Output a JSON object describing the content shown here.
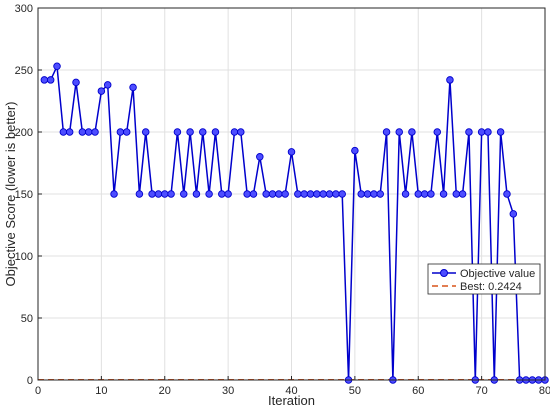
{
  "chart_data": {
    "type": "line",
    "title": "",
    "xlabel": "Iteration",
    "ylabel": "Objective Score (lower is better)",
    "xlim": [
      0,
      80
    ],
    "ylim": [
      0,
      300
    ],
    "xticks": [
      0,
      10,
      20,
      30,
      40,
      50,
      60,
      70,
      80
    ],
    "yticks": [
      0,
      50,
      100,
      150,
      200,
      250,
      300
    ],
    "grid": true,
    "legend_position": "right",
    "series": [
      {
        "name": "Objective value",
        "style": "line-with-circle-markers",
        "color": "#0000cc",
        "marker_fill": "#4d4dff",
        "x": [
          1,
          2,
          3,
          4,
          5,
          6,
          7,
          8,
          9,
          10,
          11,
          12,
          13,
          14,
          15,
          16,
          17,
          18,
          19,
          20,
          21,
          22,
          23,
          24,
          25,
          26,
          27,
          28,
          29,
          30,
          31,
          32,
          33,
          34,
          35,
          36,
          37,
          38,
          39,
          40,
          41,
          42,
          43,
          44,
          45,
          46,
          47,
          48,
          49,
          50,
          51,
          52,
          53,
          54,
          55,
          56,
          57,
          58,
          59,
          60,
          61,
          62,
          63,
          64,
          65,
          66,
          67,
          68,
          69,
          70,
          71,
          72,
          73,
          74,
          75,
          76,
          77,
          78,
          79,
          80
        ],
        "y": [
          242,
          242,
          253,
          200,
          200,
          240,
          200,
          200,
          200,
          233,
          238,
          150,
          200,
          200,
          236,
          150,
          200,
          150,
          150,
          150,
          150,
          200,
          150,
          200,
          150,
          200,
          150,
          200,
          150,
          150,
          200,
          200,
          150,
          150,
          180,
          150,
          150,
          150,
          150,
          184,
          150,
          150,
          150,
          150,
          150,
          150,
          150,
          150,
          0,
          185,
          150,
          150,
          150,
          150,
          200,
          0,
          200,
          150,
          200,
          150,
          150,
          150,
          200,
          150,
          242,
          150,
          150,
          200,
          0,
          200,
          200,
          0,
          200,
          150,
          134,
          0,
          0,
          0,
          0,
          0
        ]
      },
      {
        "name": "Best: 0.2424",
        "style": "dashed-line",
        "color": "#d95319",
        "value": 0.2424
      }
    ]
  }
}
